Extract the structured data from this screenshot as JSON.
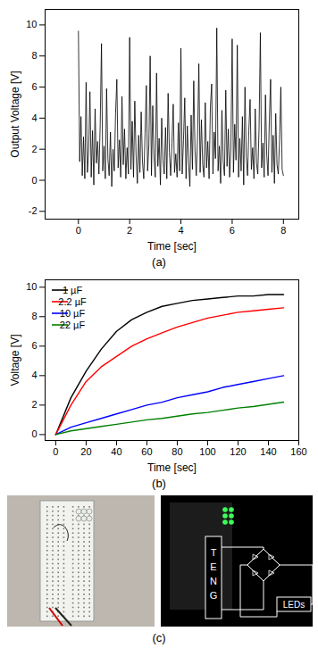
{
  "chart_data": [
    {
      "type": "line",
      "caption": "(a)",
      "x_label": "Time [sec]",
      "y_label": "Output Voltage [V]",
      "color": "#000000",
      "xlim": [
        -1.3,
        8.6
      ],
      "xticks": [
        0,
        2,
        4,
        6,
        8
      ],
      "ylim": [
        -2.5,
        11
      ],
      "yticks": [
        -2,
        0,
        2,
        4,
        6,
        8,
        10
      ],
      "x": [
        0,
        0.05,
        0.1,
        0.15,
        0.2,
        0.25,
        0.3,
        0.35,
        0.4,
        0.45,
        0.5,
        0.55,
        0.6,
        0.65,
        0.7,
        0.75,
        0.8,
        0.85,
        0.9,
        0.95,
        1,
        1.05,
        1.1,
        1.15,
        1.2,
        1.25,
        1.3,
        1.35,
        1.4,
        1.45,
        1.5,
        1.55,
        1.6,
        1.65,
        1.7,
        1.75,
        1.8,
        1.85,
        1.9,
        1.95,
        2,
        2.05,
        2.1,
        2.15,
        2.2,
        2.25,
        2.3,
        2.35,
        2.4,
        2.45,
        2.5,
        2.55,
        2.6,
        2.65,
        2.7,
        2.75,
        2.8,
        2.85,
        2.9,
        2.95,
        3,
        3.05,
        3.1,
        3.15,
        3.2,
        3.25,
        3.3,
        3.35,
        3.4,
        3.45,
        3.5,
        3.55,
        3.6,
        3.65,
        3.7,
        3.75,
        3.8,
        3.85,
        3.9,
        3.95,
        4,
        4.05,
        4.1,
        4.15,
        4.2,
        4.25,
        4.3,
        4.35,
        4.4,
        4.45,
        4.5,
        4.55,
        4.6,
        4.65,
        4.7,
        4.75,
        4.8,
        4.85,
        4.9,
        4.95,
        5,
        5.05,
        5.1,
        5.15,
        5.2,
        5.25,
        5.3,
        5.35,
        5.4,
        5.45,
        5.5,
        5.55,
        5.6,
        5.65,
        5.7,
        5.75,
        5.8,
        5.85,
        5.9,
        5.95,
        6,
        6.05,
        6.1,
        6.15,
        6.2,
        6.25,
        6.3,
        6.35,
        6.4,
        6.45,
        6.5,
        6.55,
        6.6,
        6.65,
        6.7,
        6.75,
        6.8,
        6.85,
        6.9,
        6.95,
        7,
        7.05,
        7.1,
        7.15,
        7.2,
        7.25,
        7.3,
        7.35,
        7.4,
        7.45,
        7.5,
        7.55,
        7.6,
        7.65,
        7.7,
        7.75,
        7.8,
        7.85,
        7.9,
        7.95,
        8
      ],
      "values": [
        9.6,
        1.2,
        4.1,
        0.3,
        2.8,
        0.1,
        6.3,
        0.5,
        1.9,
        5.7,
        0.2,
        3.2,
        -0.3,
        4.6,
        1.1,
        2.5,
        0.4,
        3.6,
        8.8,
        0.6,
        2.2,
        0.1,
        5.9,
        1.4,
        0.3,
        3.1,
        -0.4,
        2.0,
        0.6,
        4.3,
        6.5,
        0.8,
        2.6,
        0.2,
        5.4,
        1.0,
        3.3,
        0.1,
        2.1,
        0.4,
        9.2,
        0.7,
        3.8,
        0.2,
        5.1,
        1.6,
        -0.2,
        2.9,
        0.5,
        4.4,
        1.2,
        0.1,
        3.0,
        6.1,
        0.6,
        2.3,
        8.0,
        0.3,
        4.8,
        1.5,
        0.2,
        6.9,
        0.9,
        2.7,
        -0.3,
        4.0,
        1.3,
        0.4,
        3.4,
        0.1,
        5.6,
        1.8,
        0.3,
        2.4,
        4.9,
        0.5,
        1.7,
        0.2,
        3.7,
        0.6,
        8.5,
        0.4,
        2.6,
        5.3,
        0.1,
        3.5,
        1.1,
        -0.4,
        4.2,
        0.7,
        6.4,
        1.9,
        0.3,
        2.8,
        7.5,
        0.5,
        3.9,
        1.0,
        0.2,
        5.0,
        0.8,
        2.5,
        0.1,
        4.7,
        6.2,
        0.4,
        3.1,
        1.4,
        9.8,
        0.6,
        2.2,
        -0.2,
        4.5,
        1.2,
        0.3,
        5.8,
        0.9,
        3.3,
        0.2,
        2.0,
        9.1,
        0.5,
        3.6,
        1.3,
        8.7,
        0.2,
        2.7,
        0.6,
        4.1,
        -0.3,
        6.0,
        1.5,
        0.3,
        3.2,
        5.2,
        0.7,
        2.1,
        0.1,
        4.6,
        1.1,
        0.4,
        3.4,
        9.5,
        0.8,
        2.4,
        0.2,
        5.5,
        1.6,
        0.3,
        3.8,
        6.5,
        0.5,
        2.9,
        -0.2,
        4.3,
        1.0,
        0.4,
        2.6,
        6.0,
        0.7,
        0.3
      ]
    },
    {
      "type": "line",
      "caption": "(b)",
      "x_label": "Time [sec]",
      "y_label": "Voltage [V]",
      "legend": "upper left",
      "xlim": [
        -7,
        160
      ],
      "xticks": [
        0,
        20,
        40,
        60,
        80,
        100,
        120,
        140,
        160
      ],
      "ylim": [
        -0.4,
        10.5
      ],
      "yticks": [
        0,
        2,
        4,
        6,
        8,
        10
      ],
      "x": [
        0,
        10,
        20,
        30,
        40,
        50,
        60,
        70,
        80,
        90,
        100,
        110,
        120,
        130,
        140,
        150
      ],
      "series": [
        {
          "name": "1 µF",
          "color": "#000000",
          "values": [
            0,
            2.5,
            4.3,
            5.8,
            7.0,
            7.8,
            8.3,
            8.7,
            8.9,
            9.1,
            9.2,
            9.3,
            9.4,
            9.4,
            9.5,
            9.5
          ]
        },
        {
          "name": "2.2 µF",
          "color": "#ff0000",
          "values": [
            0,
            2.0,
            3.6,
            4.6,
            5.3,
            6.0,
            6.5,
            6.9,
            7.3,
            7.6,
            7.9,
            8.1,
            8.3,
            8.4,
            8.5,
            8.6
          ]
        },
        {
          "name": "10 µF",
          "color": "#0000ff",
          "values": [
            0,
            0.5,
            0.8,
            1.1,
            1.4,
            1.7,
            2.0,
            2.2,
            2.5,
            2.7,
            2.9,
            3.2,
            3.4,
            3.6,
            3.8,
            4.0
          ]
        },
        {
          "name": "22 µF",
          "color": "#008000",
          "values": [
            0,
            0.25,
            0.4,
            0.55,
            0.7,
            0.85,
            1.0,
            1.1,
            1.25,
            1.4,
            1.5,
            1.65,
            1.8,
            1.9,
            2.05,
            2.2
          ]
        }
      ]
    }
  ],
  "diagram": {
    "caption": "(c)",
    "source": "TENG",
    "load": "LEDs"
  }
}
